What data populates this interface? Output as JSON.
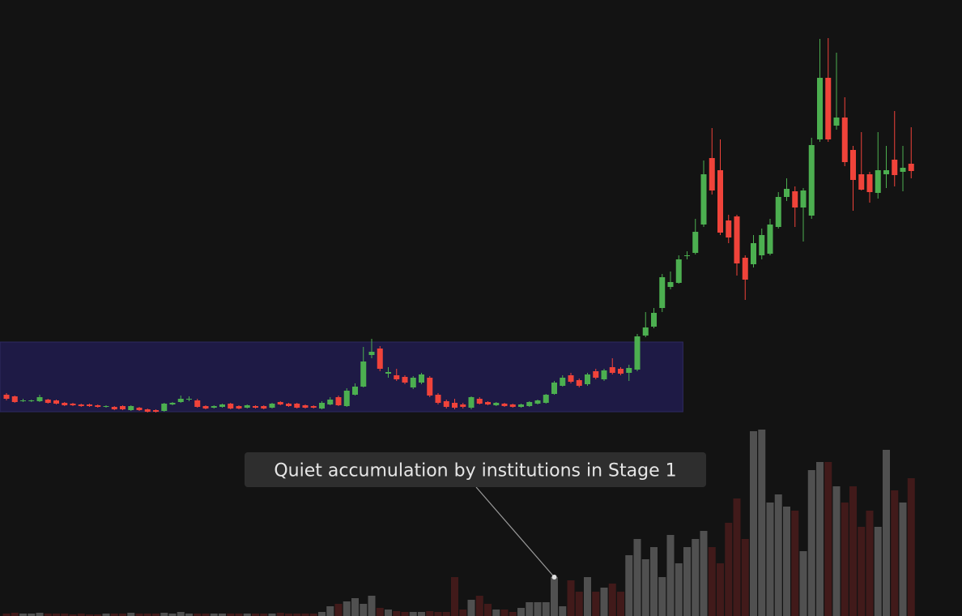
{
  "chart_data": {
    "type": "candlestick",
    "open": [
      273,
      271,
      265,
      265,
      265,
      267,
      266,
      263,
      262,
      261,
      261,
      260,
      258,
      258,
      259,
      254,
      257,
      255,
      254,
      253,
      261,
      264,
      267,
      266,
      259,
      257,
      258,
      262,
      259,
      257,
      259,
      259,
      257,
      264,
      262,
      262,
      260,
      259,
      256,
      261,
      270,
      259,
      273,
      283,
      322,
      330,
      299,
      297,
      295,
      282,
      288,
      294,
      273,
      265,
      263,
      261,
      257,
      268,
      264,
      260,
      262,
      261,
      258,
      259,
      262,
      263,
      274,
      284,
      297,
      291,
      286,
      302,
      292,
      307,
      305,
      300,
      304,
      346,
      357,
      380,
      406,
      411,
      444,
      448,
      483,
      565,
      550,
      488,
      493,
      442,
      434,
      445,
      447,
      480,
      517,
      524,
      504,
      494,
      588,
      664,
      605,
      615,
      575,
      545,
      545,
      522,
      545,
      563,
      548,
      558
    ],
    "high": [
      275,
      272,
      268,
      267,
      273,
      268,
      267,
      264,
      263,
      262,
      262,
      261,
      260,
      259,
      260,
      260,
      258,
      256,
      255,
      263,
      264,
      272,
      271,
      268,
      260,
      260,
      262,
      263,
      260,
      261,
      260,
      260,
      263,
      265,
      263,
      263,
      261,
      260,
      265,
      270,
      272,
      281,
      287,
      332,
      342,
      333,
      307,
      305,
      297,
      296,
      300,
      296,
      275,
      267,
      268,
      263,
      271,
      270,
      265,
      264,
      263,
      262,
      262,
      265,
      267,
      274,
      290,
      297,
      300,
      293,
      300,
      305,
      305,
      318,
      307,
      310,
      348,
      375,
      380,
      422,
      425,
      445,
      450,
      490,
      562,
      602,
      588,
      495,
      495,
      445,
      470,
      478,
      490,
      523,
      540,
      530,
      528,
      590,
      712,
      713,
      695,
      640,
      580,
      597,
      548,
      597,
      580,
      623,
      580,
      603
    ],
    "low": [
      266,
      263,
      264,
      264,
      264,
      262,
      261,
      259,
      259,
      258,
      258,
      257,
      257,
      254,
      254,
      253,
      253,
      251,
      251,
      252,
      260,
      263,
      265,
      257,
      255,
      256,
      257,
      255,
      255,
      256,
      256,
      255,
      256,
      260,
      258,
      256,
      256,
      256,
      255,
      260,
      259,
      258,
      272,
      282,
      318,
      302,
      294,
      290,
      286,
      280,
      286,
      270,
      261,
      256,
      255,
      256,
      255,
      261,
      260,
      259,
      258,
      257,
      257,
      258,
      261,
      262,
      273,
      283,
      287,
      282,
      284,
      292,
      290,
      298,
      297,
      290,
      302,
      344,
      355,
      375,
      403,
      410,
      440,
      446,
      480,
      520,
      470,
      460,
      420,
      390,
      430,
      440,
      445,
      478,
      512,
      480,
      462,
      490,
      585,
      585,
      600,
      555,
      500,
      525,
      510,
      515,
      528,
      530,
      524,
      540
    ],
    "close": [
      268,
      264,
      266,
      266,
      270,
      263,
      262,
      260,
      260,
      259,
      259,
      258,
      259,
      255,
      255,
      259,
      254,
      252,
      252,
      262,
      263,
      268,
      268,
      258,
      256,
      259,
      261,
      256,
      256,
      260,
      257,
      256,
      262,
      261,
      259,
      257,
      257,
      257,
      263,
      267,
      260,
      278,
      283,
      314,
      326,
      305,
      301,
      292,
      288,
      294,
      298,
      272,
      263,
      258,
      257,
      258,
      270,
      262,
      261,
      263,
      259,
      258,
      261,
      264,
      266,
      273,
      288,
      294,
      289,
      284,
      298,
      294,
      303,
      300,
      299,
      306,
      345,
      356,
      374,
      418,
      412,
      440,
      445,
      474,
      545,
      525,
      473,
      467,
      435,
      415,
      460,
      470,
      483,
      517,
      527,
      504,
      525,
      581,
      664,
      588,
      615,
      560,
      538,
      526,
      523,
      550,
      550,
      544,
      553,
      549
    ],
    "volume": [
      3,
      4,
      3,
      3,
      4,
      3,
      3,
      3,
      2,
      3,
      2,
      2,
      3,
      3,
      3,
      4,
      3,
      3,
      3,
      4,
      3,
      5,
      3,
      3,
      3,
      3,
      3,
      3,
      3,
      3,
      3,
      3,
      3,
      4,
      3,
      3,
      3,
      3,
      5,
      12,
      15,
      18,
      22,
      15,
      25,
      10,
      8,
      6,
      5,
      5,
      5,
      6,
      5,
      5,
      48,
      8,
      20,
      25,
      15,
      8,
      8,
      5,
      10,
      17,
      17,
      17,
      48,
      12,
      44,
      30,
      48,
      30,
      35,
      40,
      30,
      75,
      95,
      70,
      85,
      48,
      100,
      65,
      85,
      95,
      105,
      85,
      65,
      115,
      145,
      95,
      228,
      230,
      140,
      150,
      135,
      130,
      80,
      180,
      190,
      190,
      160,
      140,
      160,
      110,
      130,
      110,
      205,
      155,
      140,
      170
    ],
    "ylim": [
      0,
      760
    ],
    "volume_lim": [
      0,
      760
    ],
    "up_color": "#4caf50",
    "down_color": "#f0433a",
    "volume_up_color": "#5c5c5c",
    "volume_down_color": "#4a1c1c",
    "zone": {
      "start": 0,
      "end": 81,
      "low": 252,
      "high": 338,
      "color": "#1e1a45"
    },
    "annotation": {
      "text": "Quiet accumulation by institutions in Stage 1",
      "index": 66
    }
  }
}
